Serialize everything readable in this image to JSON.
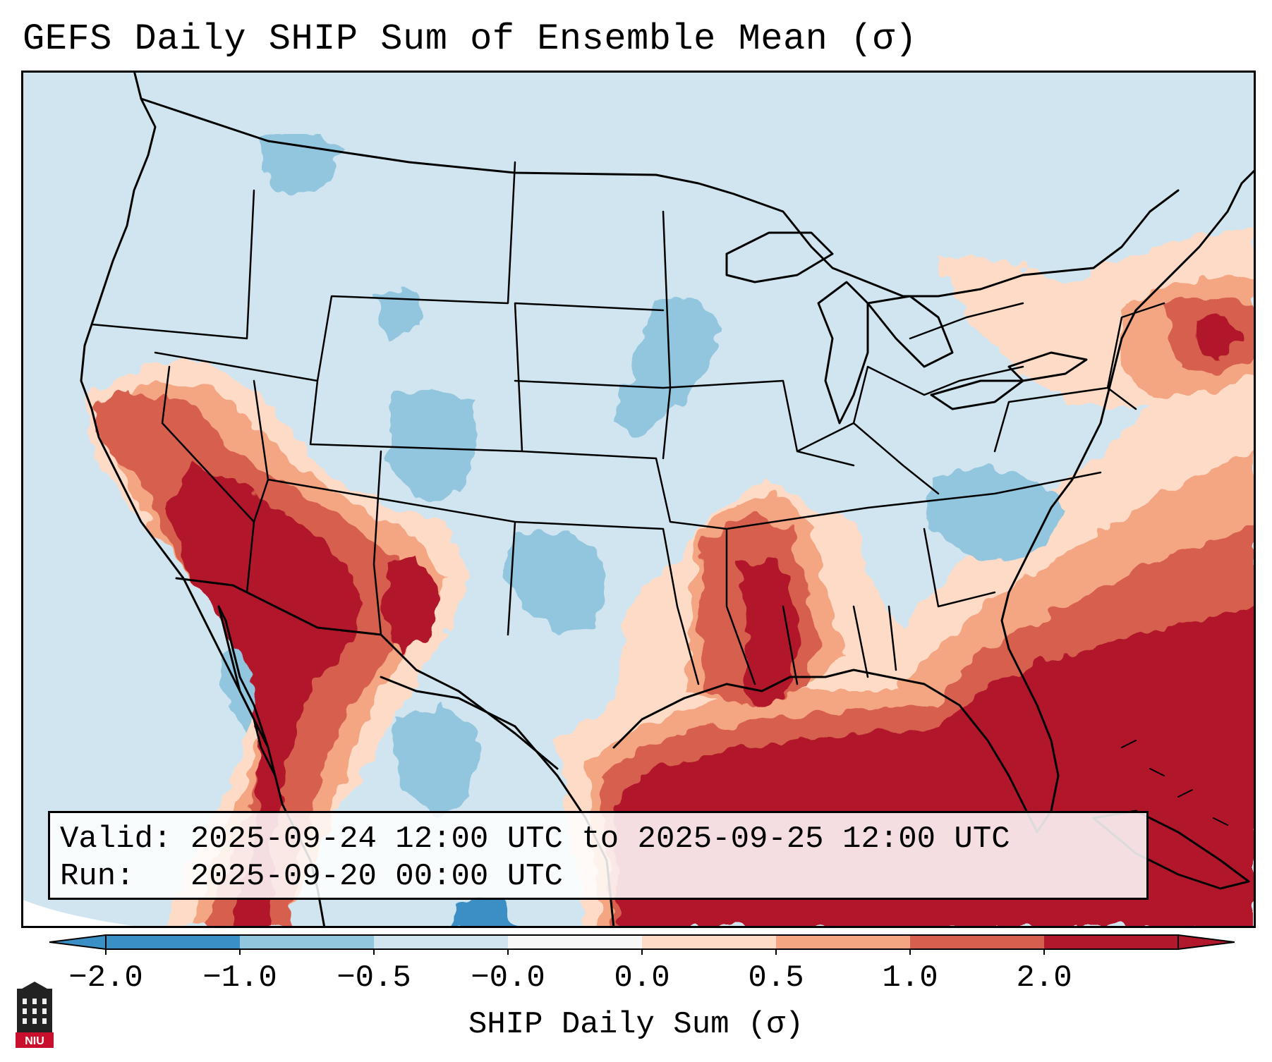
{
  "title": "GEFS Daily SHIP Sum of Ensemble Mean (σ)",
  "info": {
    "valid_label": "Valid:",
    "valid_value": "2025-09-24 12:00 UTC to 2025-09-25 12:00 UTC",
    "run_label": "Run:",
    "run_value": "2025-09-20 00:00 UTC"
  },
  "colorbar": {
    "label": "SHIP Daily Sum (σ)",
    "ticks": [
      "−2.0",
      "−1.0",
      "−0.5",
      "−0.0",
      "0.0",
      "0.5",
      "1.0",
      "2.0"
    ],
    "colors": [
      "#3a8fc4",
      "#92c5de",
      "#d1e5f0",
      "#f7f7f7",
      "#fddbc7",
      "#f4a582",
      "#d6604d",
      "#b2182b"
    ],
    "extend": "both"
  },
  "legend_colors": {
    "ocean_background": "#d1e5f0",
    "strong_positive": "#b2182b",
    "moderate_positive": "#d6604d",
    "weak_positive": "#f4a582",
    "slight_positive": "#fddbc7",
    "negative": "#92c5de",
    "strong_negative": "#3a8fc4"
  },
  "logo": {
    "text": "NIU",
    "icon": "university-building-icon"
  }
}
